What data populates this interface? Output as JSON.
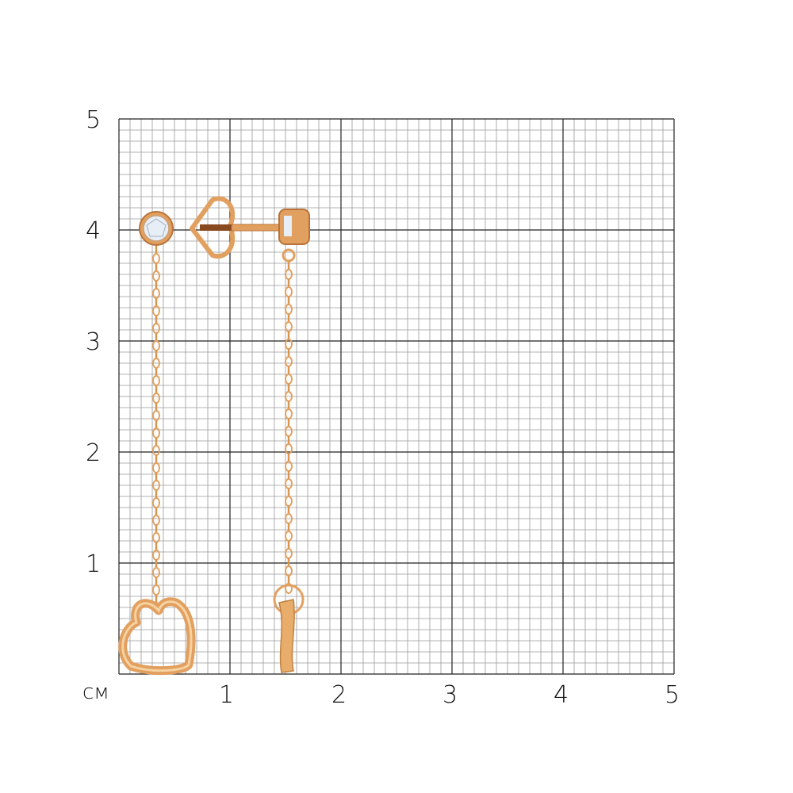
{
  "grid": {
    "unit": "см",
    "x_labels": [
      "1",
      "2",
      "3",
      "4",
      "5"
    ],
    "y_labels": [
      "5",
      "4",
      "3",
      "2",
      "1"
    ],
    "range_cm": [
      0,
      5
    ],
    "minor_step_mm": 1,
    "colors": {
      "minor": "#9a9a9a",
      "major": "#222222"
    }
  },
  "product": {
    "description_icon": "earrings-image",
    "colors": {
      "gold": "#e2a060",
      "gold_dark": "#b8733a",
      "gold_light": "#f6d2a0",
      "stone": "#e8eef5"
    }
  }
}
